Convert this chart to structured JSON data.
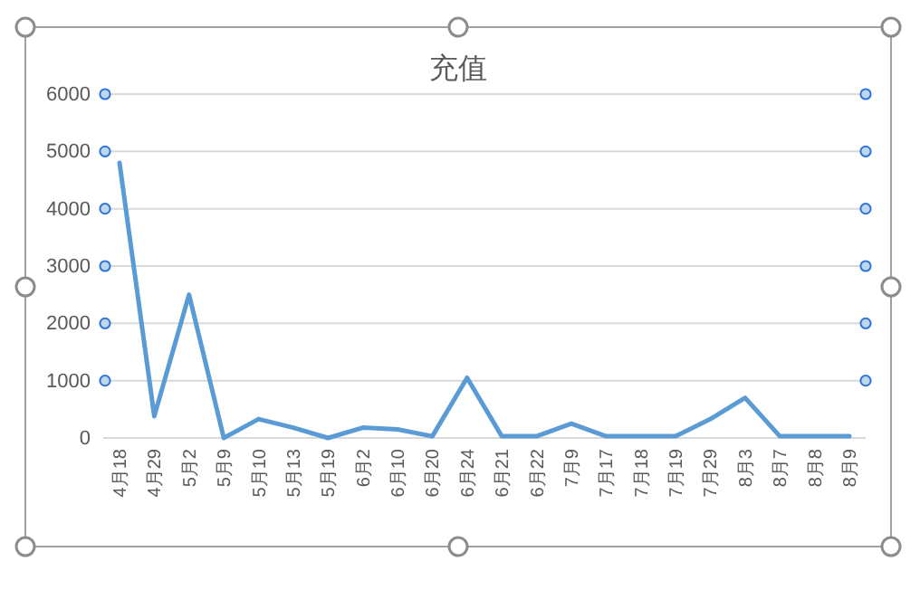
{
  "chart_data": {
    "type": "line",
    "title": "充值",
    "categories": [
      "4月18",
      "4月29",
      "5月2",
      "5月9",
      "5月10",
      "5月13",
      "5月19",
      "6月2",
      "6月10",
      "6月20",
      "6月24",
      "6月21",
      "6月22",
      "7月9",
      "7月17",
      "7月18",
      "7月19",
      "7月29",
      "8月3",
      "8月7",
      "8月8",
      "8月9"
    ],
    "series": [
      {
        "color": "#5b9bd5",
        "values": [
          4800,
          380,
          2500,
          0,
          330,
          180,
          0,
          180,
          150,
          30,
          1050,
          30,
          30,
          250,
          30,
          30,
          30,
          330,
          700,
          30,
          30,
          30
        ]
      }
    ],
    "ylim": [
      0,
      6000
    ],
    "yticks": [
      0,
      1000,
      2000,
      3000,
      4000,
      5000,
      6000
    ],
    "grid": "y",
    "marker": "none",
    "line_style": "solid"
  }
}
